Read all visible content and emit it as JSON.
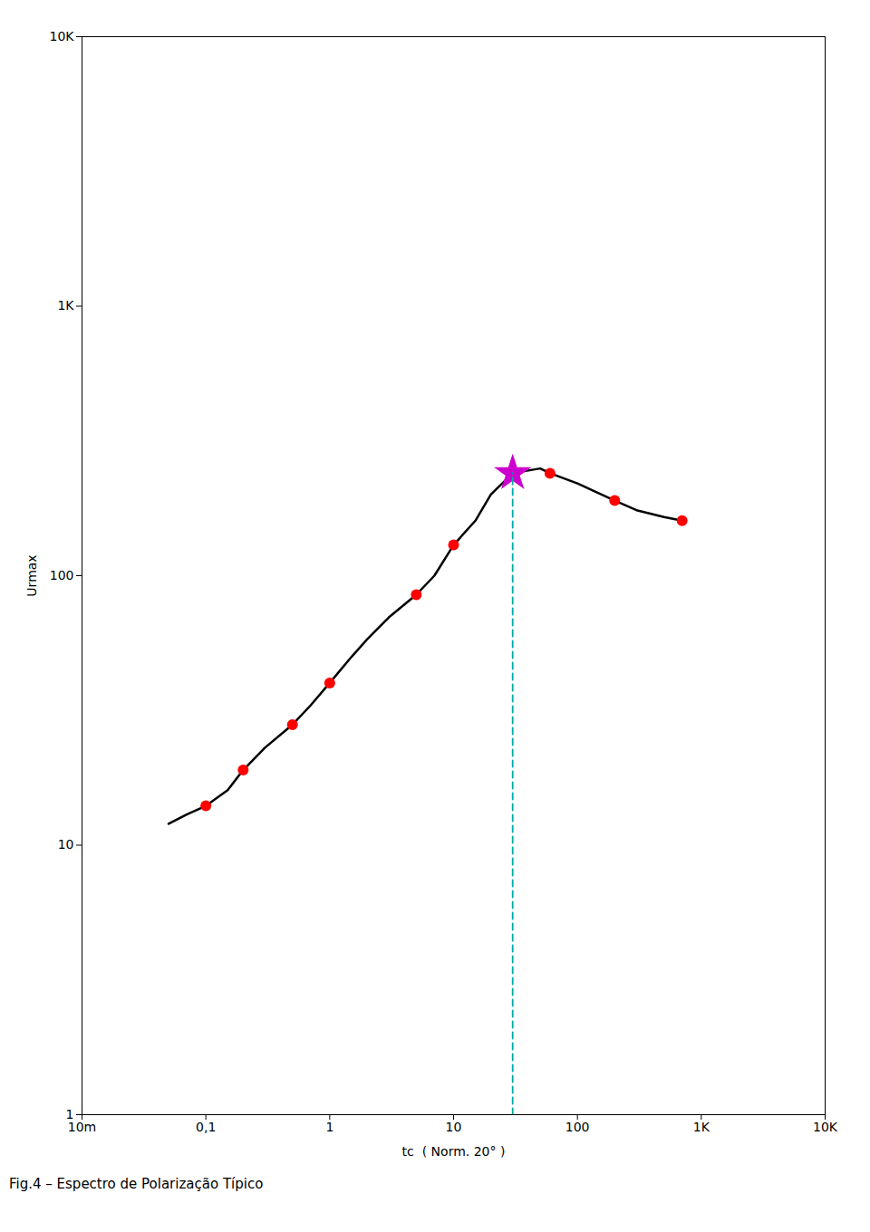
{
  "chart_data": {
    "type": "line",
    "caption": "Fig.4 – Espectro de Polarização Típico",
    "xlabel": "tc  ( Norm. 20° )",
    "ylabel": "Urmax",
    "log": true,
    "grid": false,
    "xlim": [
      0.01,
      10000
    ],
    "ylim": [
      1,
      10000
    ],
    "xticks": [
      {
        "value": 0.01,
        "label": "10m"
      },
      {
        "value": 0.1,
        "label": "0,1"
      },
      1,
      10,
      100,
      {
        "value": 1000,
        "label": "1K"
      },
      {
        "value": 10000,
        "label": "10K"
      }
    ],
    "yticks": [
      1,
      10,
      100,
      {
        "value": 1000,
        "label": "1K"
      },
      {
        "value": 10000,
        "label": "10K"
      }
    ],
    "series": [
      {
        "type": "line",
        "color": "#000000",
        "x": [
          0.05,
          0.07,
          0.1,
          0.15,
          0.2,
          0.3,
          0.5,
          0.7,
          1.0,
          1.5,
          2.0,
          3.0,
          5.0,
          7.0,
          10.0,
          15.0,
          20.0,
          30.0,
          50.0,
          60.0,
          100.0,
          200.0,
          300.0,
          500.0,
          700.0
        ],
        "values": [
          12,
          13,
          14,
          16,
          19,
          23,
          28,
          33,
          40,
          50,
          58,
          70,
          85,
          100,
          130,
          160,
          200,
          240,
          250,
          240,
          220,
          190,
          175,
          165,
          160
        ]
      },
      {
        "type": "scatter",
        "marker": "circle",
        "color": "#ff0000",
        "x": [
          0.1,
          0.2,
          0.5,
          1.0,
          5.0,
          10.0,
          30.0,
          60.0,
          200.0,
          700.0
        ],
        "values": [
          14,
          19,
          28,
          40,
          85,
          130,
          240,
          240,
          190,
          160
        ]
      },
      {
        "type": "scatter",
        "marker": "star",
        "color": "#cc00cc",
        "x": [
          30.0
        ],
        "values": [
          240
        ]
      },
      {
        "type": "line",
        "line_style": "dashed",
        "color": "#00aaaa",
        "x": [
          30.0,
          30.0
        ],
        "values": [
          1,
          240
        ]
      }
    ]
  }
}
